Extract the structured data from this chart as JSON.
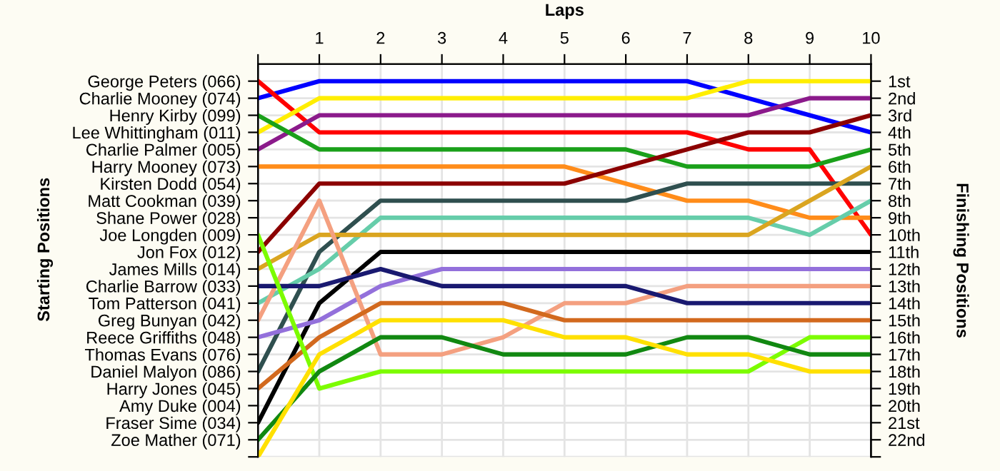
{
  "chart_data": {
    "type": "line",
    "xlabel": "Laps",
    "annotations": [
      "Starting Positions"
    ],
    "y2label": "Finishing Positions",
    "x": [
      0,
      1,
      2,
      3,
      4,
      5,
      6,
      7,
      8,
      9,
      10
    ],
    "xlim": [
      0,
      10
    ],
    "xticks": [
      {
        "value": 0,
        "label": null
      },
      1,
      2,
      3,
      4,
      5,
      6,
      7,
      8,
      9,
      10
    ],
    "y_categories": [
      "George Peters (066)",
      "Charlie Mooney (074)",
      "Henry Kirby (099)",
      "Lee Whittingham (011)",
      "Charlie Palmer (005)",
      "Harry Mooney (073)",
      "Kirsten Dodd (054)",
      "Matt Cookman (039)",
      "Shane Power (028)",
      "Joe Longden (009)",
      "Jon Fox (012)",
      "James Mills (014)",
      "Charlie Barrow (033)",
      "Tom Patterson (041)",
      "Greg Bunyan (042)",
      "Reece Griffiths (048)",
      "Thomas Evans (076)",
      "Daniel Malyon (086)",
      "Harry Jones (045)",
      "Amy Duke (004)",
      "Fraser Sime (034)",
      "Zoe Mather (071)",
      null
    ],
    "y2lim": [
      23,
      0
    ],
    "y2ticks": [
      {
        "value": 1,
        "label": "1st"
      },
      {
        "value": 2,
        "label": "2nd"
      },
      {
        "value": 3,
        "label": "3rd"
      },
      {
        "value": 4,
        "label": "4th"
      },
      {
        "value": 5,
        "label": "5th"
      },
      {
        "value": 6,
        "label": "6th"
      },
      {
        "value": 7,
        "label": "7th"
      },
      {
        "value": 8,
        "label": "8th"
      },
      {
        "value": 9,
        "label": "9th"
      },
      {
        "value": 10,
        "label": "10th"
      },
      {
        "value": 11,
        "label": "11th"
      },
      {
        "value": 12,
        "label": "12th"
      },
      {
        "value": 13,
        "label": "13th"
      },
      {
        "value": 14,
        "label": "14th"
      },
      {
        "value": 15,
        "label": "15th"
      },
      {
        "value": 16,
        "label": "16th"
      },
      {
        "value": 17,
        "label": "17th"
      },
      {
        "value": 18,
        "label": "18th"
      },
      {
        "value": 19,
        "label": "19th"
      },
      {
        "value": 20,
        "label": "20th"
      },
      {
        "value": 21,
        "label": "21st"
      },
      {
        "value": 22,
        "label": "22nd"
      },
      {
        "value": 23,
        "label": null
      }
    ],
    "grid": true,
    "series": [
      {
        "axis": "y2",
        "color": "#0000ff",
        "values": [
          2,
          1,
          1,
          1,
          1,
          1,
          1,
          1,
          2,
          3,
          4
        ]
      },
      {
        "axis": "y2",
        "color": "#ff0000",
        "values": [
          1,
          4,
          4,
          4,
          4,
          4,
          4,
          4,
          5,
          5,
          10
        ]
      },
      {
        "axis": "y2",
        "color": "#ffee00",
        "values": [
          4,
          2,
          2,
          2,
          2,
          2,
          2,
          2,
          1,
          1,
          1
        ]
      },
      {
        "axis": "y2",
        "color": "#8b1a8b",
        "values": [
          5,
          3,
          3,
          3,
          3,
          3,
          3,
          3,
          3,
          2,
          2
        ]
      },
      {
        "axis": "y2",
        "color": "#1aa01a",
        "values": [
          3,
          5,
          5,
          5,
          5,
          5,
          5,
          6,
          6,
          6,
          5
        ]
      },
      {
        "axis": "y2",
        "color": "#ff8c1a",
        "values": [
          6,
          6,
          6,
          6,
          6,
          6,
          7,
          8,
          8,
          9,
          9
        ]
      },
      {
        "axis": "y2",
        "color": "#8b0000",
        "values": [
          11,
          7,
          7,
          7,
          7,
          7,
          6,
          5,
          4,
          4,
          3
        ]
      },
      {
        "axis": "y2",
        "color": "#2f4f4f",
        "values": [
          18,
          11,
          8,
          8,
          8,
          8,
          8,
          7,
          7,
          7,
          7
        ]
      },
      {
        "axis": "y2",
        "color": "#66cdaa",
        "values": [
          14,
          12,
          9,
          9,
          9,
          9,
          9,
          9,
          9,
          10,
          8
        ]
      },
      {
        "axis": "y2",
        "color": "#daa520",
        "values": [
          12,
          10,
          10,
          10,
          10,
          10,
          10,
          10,
          10,
          8,
          6
        ]
      },
      {
        "axis": "y2",
        "color": "#000000",
        "values": [
          21,
          14,
          11,
          11,
          11,
          11,
          11,
          11,
          11,
          11,
          11
        ]
      },
      {
        "axis": "y2",
        "color": "#9370db",
        "values": [
          16,
          15,
          13,
          12,
          12,
          12,
          12,
          12,
          12,
          12,
          12
        ]
      },
      {
        "axis": "y2",
        "color": "#f4a080",
        "values": [
          15,
          8,
          17,
          17,
          16,
          14,
          14,
          13,
          13,
          13,
          13
        ]
      },
      {
        "axis": "y2",
        "color": "#191970",
        "values": [
          13,
          13,
          12,
          13,
          13,
          13,
          13,
          14,
          14,
          14,
          14
        ]
      },
      {
        "axis": "y2",
        "color": "#d2691e",
        "values": [
          19,
          16,
          14,
          14,
          14,
          15,
          15,
          15,
          15,
          15,
          15
        ]
      },
      {
        "axis": "y2",
        "color": "#7cfc00",
        "values": [
          10,
          19,
          18,
          18,
          18,
          18,
          18,
          18,
          18,
          16,
          16
        ]
      },
      {
        "axis": "y2",
        "color": "#118811",
        "values": [
          22,
          18,
          16,
          16,
          17,
          17,
          17,
          16,
          16,
          17,
          17
        ]
      },
      {
        "axis": "y2",
        "color": "#ffe000",
        "values": [
          23,
          17,
          15,
          15,
          15,
          16,
          16,
          17,
          17,
          18,
          18
        ]
      }
    ]
  }
}
